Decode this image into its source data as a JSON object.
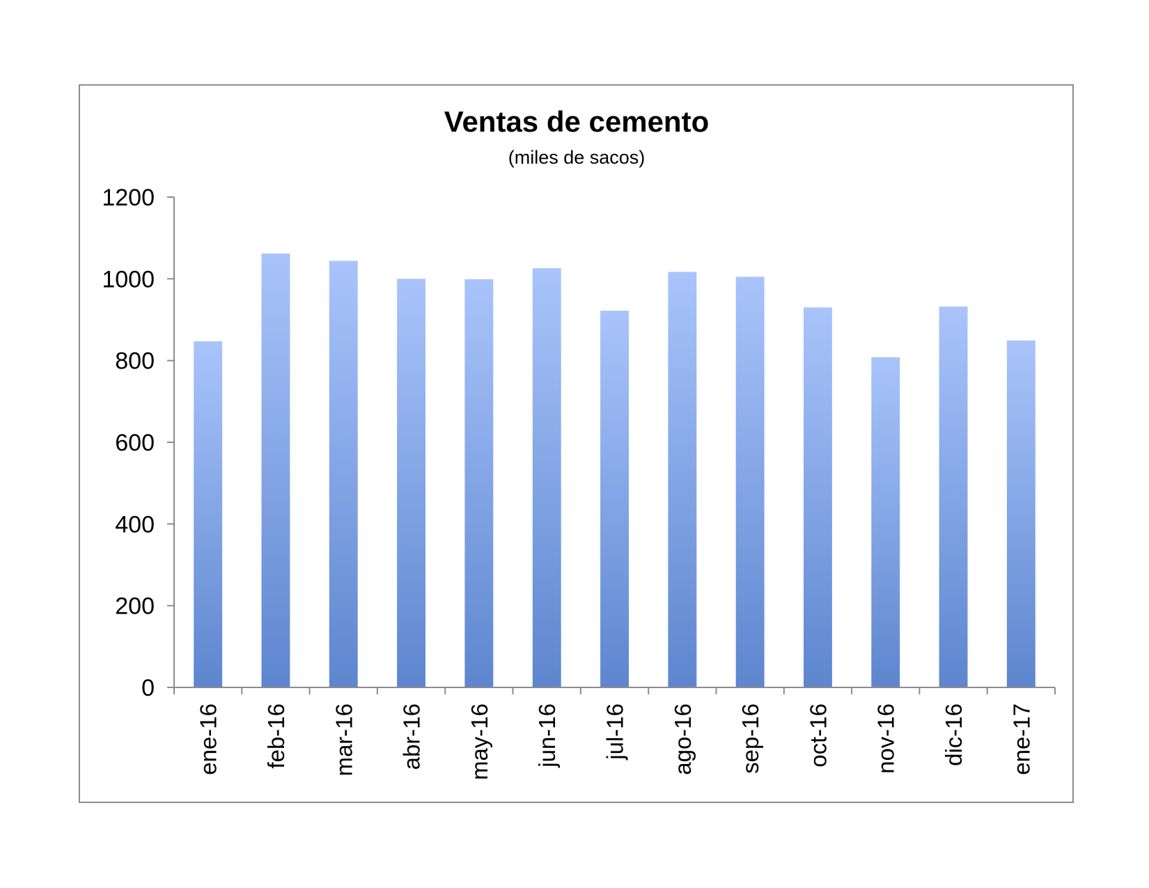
{
  "chart_data": {
    "type": "bar",
    "title": "Ventas de cemento",
    "subtitle": "(miles de sacos)",
    "xlabel": "",
    "ylabel": "",
    "categories": [
      "ene-16",
      "feb-16",
      "mar-16",
      "abr-16",
      "may-16",
      "jun-16",
      "jul-16",
      "ago-16",
      "sep-16",
      "oct-16",
      "nov-16",
      "dic-16",
      "ene-17"
    ],
    "values": [
      847,
      1062,
      1044,
      1000,
      999,
      1026,
      922,
      1017,
      1005,
      930,
      808,
      932,
      849
    ],
    "ylim": [
      0,
      1200
    ],
    "yticks": [
      "0",
      "200",
      "400",
      "600",
      "800",
      "1000",
      "1200"
    ],
    "grid": false,
    "legend": "none",
    "colors": {
      "bar_top": "#a9c4fb",
      "bar_bottom": "#5d86cf",
      "axis": "#8c8c8c",
      "frame": "#8c8c8c"
    }
  }
}
